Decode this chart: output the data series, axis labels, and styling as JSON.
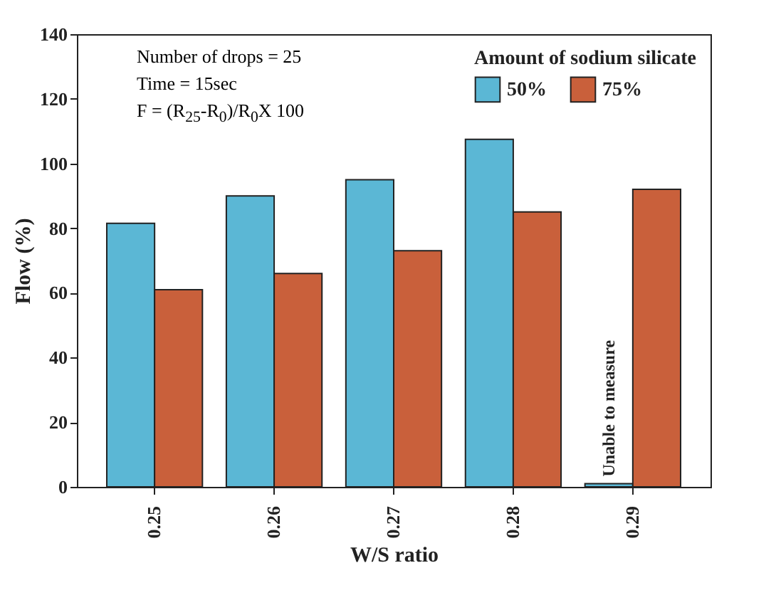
{
  "chart_data": {
    "type": "bar",
    "xlabel": "W/S ratio",
    "ylabel": "Flow (%)",
    "legend_title": "Amount of sodium silicate",
    "legend": "top right",
    "categories": [
      "0.25",
      "0.26",
      "0.27",
      "0.28",
      "0.29"
    ],
    "series": [
      {
        "name": "50%",
        "color": "#5bb7d5",
        "values": [
          81.5,
          90,
          95,
          107.5,
          1
        ]
      },
      {
        "name": "75%",
        "color": "#c9603b",
        "values": [
          61,
          66,
          73,
          85,
          92
        ]
      }
    ],
    "ylim": [
      0,
      140
    ],
    "yticks": [
      0,
      20,
      40,
      60,
      80,
      100,
      120,
      140
    ],
    "grid": false,
    "annotations": [
      "Number of drops = 25",
      "Time = 15sec",
      "F = (R$_{25}$-R$_{0}$)/R$_{0}$X 100",
      {
        "text": "Unable to measure",
        "x": "0.29",
        "y": 1
      }
    ]
  }
}
